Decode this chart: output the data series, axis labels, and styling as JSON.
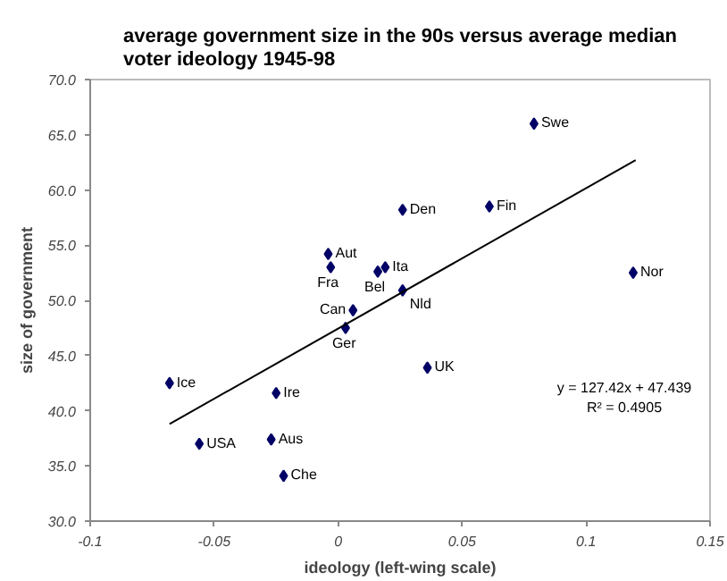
{
  "chart_data": {
    "type": "scatter",
    "title": "average government size in the 90s versus average median voter ideology 1945-98",
    "xlabel": "ideology (left-wing scale)",
    "ylabel": "size of government",
    "marker": "diamond",
    "grid": false,
    "series": [
      {
        "color": "#000066",
        "x": [
          0.079,
          0.026,
          0.061,
          -0.004,
          -0.003,
          0.019,
          0.016,
          0.026,
          0.006,
          0.003,
          0.119,
          0.036,
          -0.068,
          -0.025,
          -0.056,
          -0.027,
          -0.022
        ],
        "values": [
          66.0,
          58.2,
          58.5,
          54.2,
          53.0,
          53.0,
          52.6,
          50.9,
          49.1,
          47.5,
          52.5,
          43.9,
          42.5,
          41.6,
          37.0,
          37.4,
          34.1
        ]
      },
      {
        "type": "line",
        "color": "#000000",
        "marker": "none",
        "line_style": "solid",
        "x": [
          -0.068,
          0.12
        ],
        "values": [
          38.8,
          62.7
        ]
      }
    ],
    "xlim": [
      -0.1,
      0.15
    ],
    "xticks": [
      -0.1,
      -0.05,
      0,
      0.05,
      0.1,
      0.15
    ],
    "ylim": [
      30,
      70
    ],
    "yticks": [
      {
        "value": 30,
        "label": "30.0"
      },
      {
        "value": 35,
        "label": "35.0"
      },
      {
        "value": 40,
        "label": "40.0"
      },
      {
        "value": 45,
        "label": "45.0"
      },
      {
        "value": 50,
        "label": "50.0"
      },
      {
        "value": 55,
        "label": "55.0"
      },
      {
        "value": 60,
        "label": "60.0"
      },
      {
        "value": 65,
        "label": "65.0"
      },
      {
        "value": 70,
        "label": "70.0"
      }
    ],
    "annotations": [
      {
        "text": "Swe",
        "x": 0.079,
        "y": 66.0
      },
      {
        "text": "Den",
        "x": 0.026,
        "y": 58.2
      },
      {
        "text": "Fin",
        "x": 0.061,
        "y": 58.5
      },
      {
        "text": "Aut",
        "x": -0.004,
        "y": 54.2
      },
      {
        "text": "Fra",
        "x": -0.003,
        "y": 53.0
      },
      {
        "text": "Ita",
        "x": 0.019,
        "y": 53.0
      },
      {
        "text": "Bel",
        "x": 0.016,
        "y": 52.6
      },
      {
        "text": "Nld",
        "x": 0.026,
        "y": 50.9
      },
      {
        "text": "Can",
        "x": 0.006,
        "y": 49.1
      },
      {
        "text": "Ger",
        "x": 0.003,
        "y": 47.5
      },
      {
        "text": "Nor",
        "x": 0.119,
        "y": 52.5
      },
      {
        "text": "UK",
        "x": 0.036,
        "y": 43.9
      },
      {
        "text": "Ice",
        "x": -0.068,
        "y": 42.5
      },
      {
        "text": "Ire",
        "x": -0.025,
        "y": 41.6
      },
      {
        "text": "USA",
        "x": -0.056,
        "y": 37.0
      },
      {
        "text": "Aus",
        "x": -0.027,
        "y": 37.4
      },
      {
        "text": "Che",
        "x": -0.022,
        "y": 34.1
      },
      "y = 127.42x + 47.439",
      "R² = 0.4905"
    ]
  }
}
